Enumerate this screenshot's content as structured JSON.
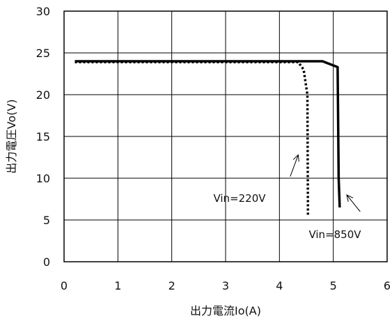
{
  "chart_data": {
    "type": "line",
    "xlabel": "出力電流Io(A)",
    "ylabel": "出力電圧Vo(V)",
    "xlim": [
      0,
      6
    ],
    "ylim": [
      0,
      30
    ],
    "x_ticks": [
      "0",
      "1",
      "2",
      "3",
      "4",
      "5",
      "6"
    ],
    "y_ticks": [
      "0",
      "5",
      "10",
      "15",
      "20",
      "25",
      "30"
    ],
    "grid": true,
    "series": [
      {
        "name": "Vin=850V",
        "style": "solid",
        "color": "#000000",
        "points": [
          [
            0.2,
            24.0
          ],
          [
            4.8,
            24.0
          ],
          [
            5.08,
            23.3
          ],
          [
            5.1,
            10.0
          ],
          [
            5.12,
            6.5
          ]
        ]
      },
      {
        "name": "Vin=220V",
        "style": "dotted",
        "color": "#000000",
        "points": [
          [
            0.2,
            23.9
          ],
          [
            4.35,
            23.9
          ],
          [
            4.45,
            23.0
          ],
          [
            4.52,
            20.0
          ],
          [
            4.53,
            5.5
          ]
        ]
      }
    ],
    "annotations": [
      {
        "text": "Vin=220V",
        "series": "Vin=220V",
        "arrow_from": [
          4.2,
          10.2
        ],
        "arrow_to": [
          4.35,
          12.8
        ]
      },
      {
        "text": "Vin=850V",
        "series": "Vin=850V",
        "arrow_from": [
          5.5,
          6.0
        ],
        "arrow_to": [
          5.25,
          8.0
        ]
      }
    ]
  }
}
